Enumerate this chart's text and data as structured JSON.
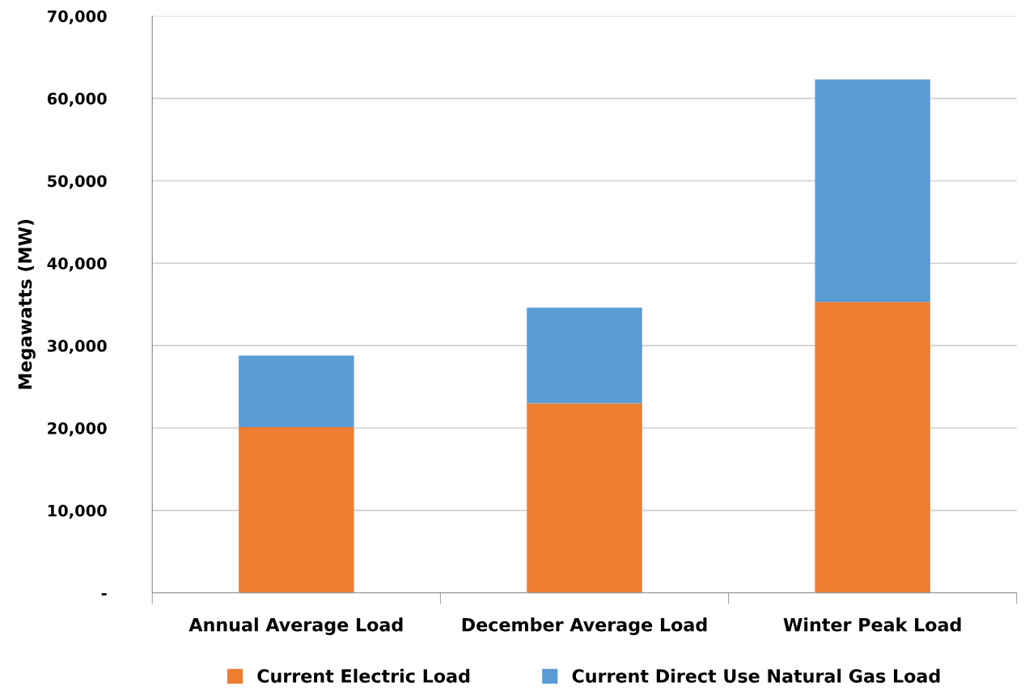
{
  "chart_data": {
    "type": "bar",
    "stacked": true,
    "ylabel": "Megawatts (MW)",
    "categories": [
      "Annual Average Load",
      "December Average Load",
      "Winter Peak Load"
    ],
    "series": [
      {
        "name": "Current Electric Load",
        "color": "#ed7d31",
        "values": [
          20100,
          23000,
          35300
        ]
      },
      {
        "name": "Current Direct Use Natural Gas Load",
        "color": "#5b9bd5",
        "values": [
          8700,
          11600,
          27000
        ]
      }
    ],
    "ylim": [
      0,
      70000
    ],
    "yticks": [
      {
        "value": 0,
        "label": "-"
      },
      {
        "value": 10000,
        "label": "10,000"
      },
      {
        "value": 20000,
        "label": "20,000"
      },
      {
        "value": 30000,
        "label": "30,000"
      },
      {
        "value": 40000,
        "label": "40,000"
      },
      {
        "value": 50000,
        "label": "50,000"
      },
      {
        "value": 60000,
        "label": "60,000"
      },
      {
        "value": 70000,
        "label": "70,000"
      }
    ],
    "grid": "y",
    "legend": "bottom"
  }
}
